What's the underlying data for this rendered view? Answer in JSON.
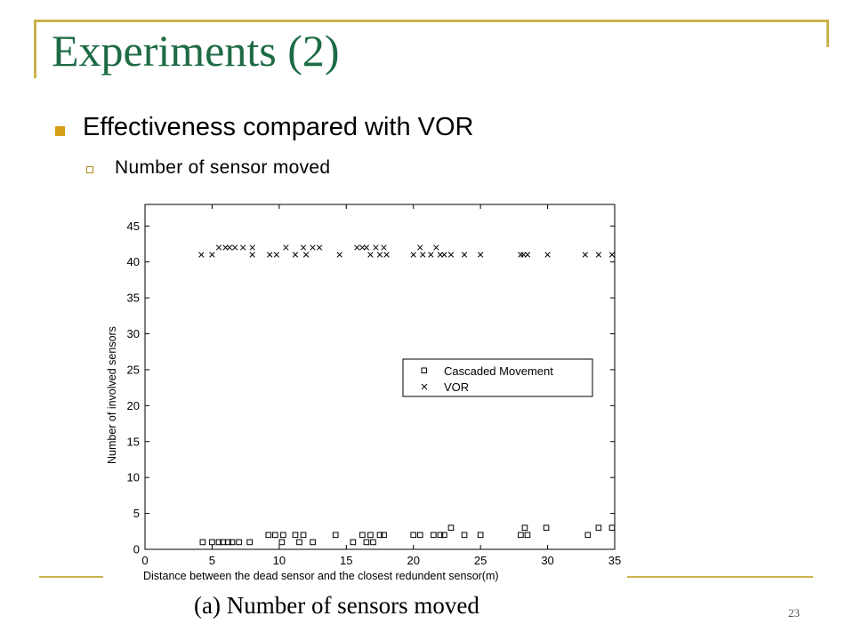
{
  "slide": {
    "title": "Experiments (2)",
    "bullet_main": "Effectiveness compared with VOR",
    "bullet_sub": "Number of sensor moved",
    "caption": "(a) Number of sensors moved",
    "page_number": "23",
    "colors": {
      "title": "#1e6b45",
      "accent": "#c9b24a",
      "bullet": "#d4a017"
    }
  },
  "chart_data": {
    "type": "scatter",
    "xlabel": "Distance between the dead sensor and the closest redundent sensor(m)",
    "ylabel": "Number of involved sensors",
    "xlim": [
      0,
      35
    ],
    "ylim": [
      0,
      48
    ],
    "xticks": [
      0,
      5,
      10,
      15,
      20,
      25,
      30,
      35
    ],
    "yticks": [
      0,
      5,
      10,
      15,
      20,
      25,
      30,
      35,
      40,
      45
    ],
    "legend_position": "right-middle",
    "grid": false,
    "series": [
      {
        "name": "Cascaded Movement",
        "marker": "square",
        "points": [
          [
            4.3,
            1
          ],
          [
            5,
            1
          ],
          [
            5.5,
            1
          ],
          [
            5.8,
            1
          ],
          [
            6.2,
            1
          ],
          [
            6.5,
            1
          ],
          [
            7,
            1
          ],
          [
            7.8,
            1
          ],
          [
            9.2,
            2
          ],
          [
            9.7,
            2
          ],
          [
            10.2,
            1
          ],
          [
            10.3,
            2
          ],
          [
            11.2,
            2
          ],
          [
            11.5,
            1
          ],
          [
            11.8,
            2
          ],
          [
            12.5,
            1
          ],
          [
            14.2,
            2
          ],
          [
            15.5,
            1
          ],
          [
            16.2,
            2
          ],
          [
            16.5,
            1
          ],
          [
            16.8,
            2
          ],
          [
            17,
            1
          ],
          [
            17.5,
            2
          ],
          [
            17.8,
            2
          ],
          [
            20,
            2
          ],
          [
            20.5,
            2
          ],
          [
            21.5,
            2
          ],
          [
            22,
            2
          ],
          [
            22.3,
            2
          ],
          [
            22.8,
            3
          ],
          [
            23.8,
            2
          ],
          [
            25,
            2
          ],
          [
            28,
            2
          ],
          [
            28.3,
            3
          ],
          [
            28.5,
            2
          ],
          [
            29.9,
            3
          ],
          [
            33,
            2
          ],
          [
            33.8,
            3
          ],
          [
            34.8,
            3
          ]
        ]
      },
      {
        "name": "VOR",
        "marker": "x",
        "points": [
          [
            4.2,
            41
          ],
          [
            5,
            41
          ],
          [
            5.5,
            42
          ],
          [
            6,
            42
          ],
          [
            6.3,
            42
          ],
          [
            6.7,
            42
          ],
          [
            7.3,
            42
          ],
          [
            8,
            42
          ],
          [
            8,
            41
          ],
          [
            9.3,
            41
          ],
          [
            9.8,
            41
          ],
          [
            10.5,
            42
          ],
          [
            11.2,
            41
          ],
          [
            11.8,
            42
          ],
          [
            12,
            41
          ],
          [
            12.5,
            42
          ],
          [
            13,
            42
          ],
          [
            14.5,
            41
          ],
          [
            15.8,
            42
          ],
          [
            16.2,
            42
          ],
          [
            16.5,
            42
          ],
          [
            16.8,
            41
          ],
          [
            17.2,
            42
          ],
          [
            17.5,
            41
          ],
          [
            17.8,
            42
          ],
          [
            18,
            41
          ],
          [
            20,
            41
          ],
          [
            20.5,
            42
          ],
          [
            20.7,
            41
          ],
          [
            21.3,
            41
          ],
          [
            21.7,
            42
          ],
          [
            22,
            41
          ],
          [
            22.3,
            41
          ],
          [
            22.8,
            41
          ],
          [
            23.8,
            41
          ],
          [
            25,
            41
          ],
          [
            28,
            41
          ],
          [
            28.2,
            41
          ],
          [
            28.5,
            41
          ],
          [
            30,
            41
          ],
          [
            32.8,
            41
          ],
          [
            33.8,
            41
          ],
          [
            34.8,
            41
          ]
        ]
      }
    ]
  }
}
